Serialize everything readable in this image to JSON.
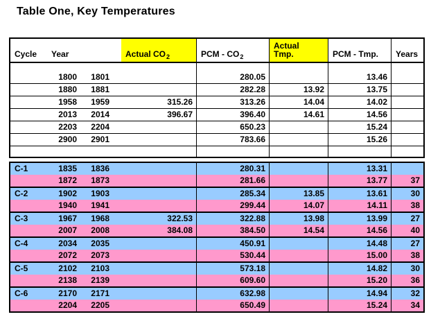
{
  "title": "Table One, Key Temperatures",
  "colors": {
    "highlight_yellow": "#FFFF00",
    "cycle_row_blue": "#99CCFF",
    "cycle_row_pink": "#FF99CC",
    "border": "#000000"
  },
  "header": {
    "cycle": "Cycle",
    "year": "Year",
    "actual_co2": {
      "text": "Actual CO",
      "sub": "2"
    },
    "pcm_co2": {
      "text": "PCM - CO",
      "sub": "2"
    },
    "actual_tmp": {
      "line1": "Actual",
      "line2": "Tmp."
    },
    "pcm_tmp": "PCM - Tmp.",
    "years": "Years"
  },
  "top_rows": [
    {
      "cycle": "",
      "year1": "1800",
      "year2": "1801",
      "actual_co2": "",
      "pcm_co2": "280.05",
      "actual_tmp": "",
      "pcm_tmp": "13.46",
      "years": ""
    },
    {
      "cycle": "",
      "year1": "1880",
      "year2": "1881",
      "actual_co2": "",
      "pcm_co2": "282.28",
      "actual_tmp": "13.92",
      "pcm_tmp": "13.75",
      "years": ""
    },
    {
      "cycle": "",
      "year1": "1958",
      "year2": "1959",
      "actual_co2": "315.26",
      "pcm_co2": "313.26",
      "actual_tmp": "14.04",
      "pcm_tmp": "14.02",
      "years": ""
    },
    {
      "cycle": "",
      "year1": "2013",
      "year2": "2014",
      "actual_co2": "396.67",
      "pcm_co2": "396.40",
      "actual_tmp": "14.61",
      "pcm_tmp": "14.56",
      "years": ""
    },
    {
      "cycle": "",
      "year1": "2203",
      "year2": "2204",
      "actual_co2": "",
      "pcm_co2": "650.23",
      "actual_tmp": "",
      "pcm_tmp": "15.24",
      "years": ""
    },
    {
      "cycle": "",
      "year1": "2900",
      "year2": "2901",
      "actual_co2": "",
      "pcm_co2": "783.66",
      "actual_tmp": "",
      "pcm_tmp": "15.26",
      "years": ""
    }
  ],
  "cycles": [
    {
      "label": "C-1",
      "blue": {
        "cycle": "C-1",
        "year1": "1835",
        "year2": "1836",
        "actual_co2": "",
        "pcm_co2": "280.31",
        "actual_tmp": "",
        "pcm_tmp": "13.31",
        "years": ""
      },
      "pink": {
        "cycle": "",
        "year1": "1872",
        "year2": "1873",
        "actual_co2": "",
        "pcm_co2": "281.66",
        "actual_tmp": "",
        "pcm_tmp": "13.77",
        "years": "37"
      }
    },
    {
      "label": "C-2",
      "blue": {
        "cycle": "C-2",
        "year1": "1902",
        "year2": "1903",
        "actual_co2": "",
        "pcm_co2": "285.34",
        "actual_tmp": "13.85",
        "pcm_tmp": "13.61",
        "years": "30"
      },
      "pink": {
        "cycle": "",
        "year1": "1940",
        "year2": "1941",
        "actual_co2": "",
        "pcm_co2": "299.44",
        "actual_tmp": "14.07",
        "pcm_tmp": "14.11",
        "years": "38"
      }
    },
    {
      "label": "C-3",
      "blue": {
        "cycle": "C-3",
        "year1": "1967",
        "year2": "1968",
        "actual_co2": "322.53",
        "pcm_co2": "322.88",
        "actual_tmp": "13.98",
        "pcm_tmp": "13.99",
        "years": "27"
      },
      "pink": {
        "cycle": "",
        "year1": "2007",
        "year2": "2008",
        "actual_co2": "384.08",
        "pcm_co2": "384.50",
        "actual_tmp": "14.54",
        "pcm_tmp": "14.56",
        "years": "40"
      }
    },
    {
      "label": "C-4",
      "blue": {
        "cycle": "C-4",
        "year1": "2034",
        "year2": "2035",
        "actual_co2": "",
        "pcm_co2": "450.91",
        "actual_tmp": "",
        "pcm_tmp": "14.48",
        "years": "27"
      },
      "pink": {
        "cycle": "",
        "year1": "2072",
        "year2": "2073",
        "actual_co2": "",
        "pcm_co2": "530.44",
        "actual_tmp": "",
        "pcm_tmp": "15.00",
        "years": "38"
      }
    },
    {
      "label": "C-5",
      "blue": {
        "cycle": "C-5",
        "year1": "2102",
        "year2": "2103",
        "actual_co2": "",
        "pcm_co2": "573.18",
        "actual_tmp": "",
        "pcm_tmp": "14.82",
        "years": "30"
      },
      "pink": {
        "cycle": "",
        "year1": "2138",
        "year2": "2139",
        "actual_co2": "",
        "pcm_co2": "609.60",
        "actual_tmp": "",
        "pcm_tmp": "15.20",
        "years": "36"
      }
    },
    {
      "label": "C-6",
      "blue": {
        "cycle": "C-6",
        "year1": "2170",
        "year2": "2171",
        "actual_co2": "",
        "pcm_co2": "632.98",
        "actual_tmp": "",
        "pcm_tmp": "14.94",
        "years": "32"
      },
      "pink": {
        "cycle": "",
        "year1": "2204",
        "year2": "2205",
        "actual_co2": "",
        "pcm_co2": "650.49",
        "actual_tmp": "",
        "pcm_tmp": "15.24",
        "years": "34"
      }
    }
  ]
}
